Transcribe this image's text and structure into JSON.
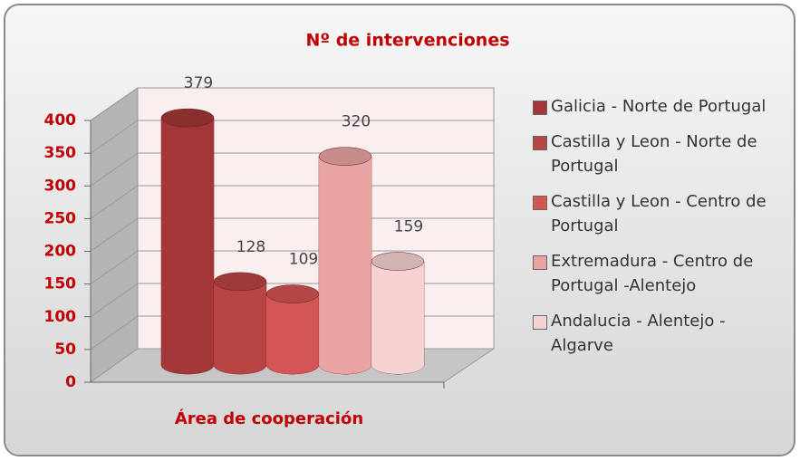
{
  "chart_data": {
    "type": "bar",
    "title": "Nº de intervenciones",
    "x_label": "Área de cooperación",
    "categories": [
      "Galicia - Norte de Portugal",
      "Castilla y Leon - Norte de Portugal",
      "Castilla y Leon - Centro de Portugal",
      "Extremadura - Centro de Portugal -Alentejo",
      "Andalucia - Alentejo - Algarve"
    ],
    "values": [
      379,
      128,
      109,
      320,
      159
    ],
    "colors": [
      "#a33636",
      "#b94444",
      "#d45555",
      "#e9a3a3",
      "#f6d2d2"
    ],
    "ylim": [
      0,
      400
    ],
    "yticks": [
      0,
      50,
      100,
      150,
      200,
      250,
      300,
      350,
      400
    ],
    "grid": true,
    "legend": "right"
  }
}
